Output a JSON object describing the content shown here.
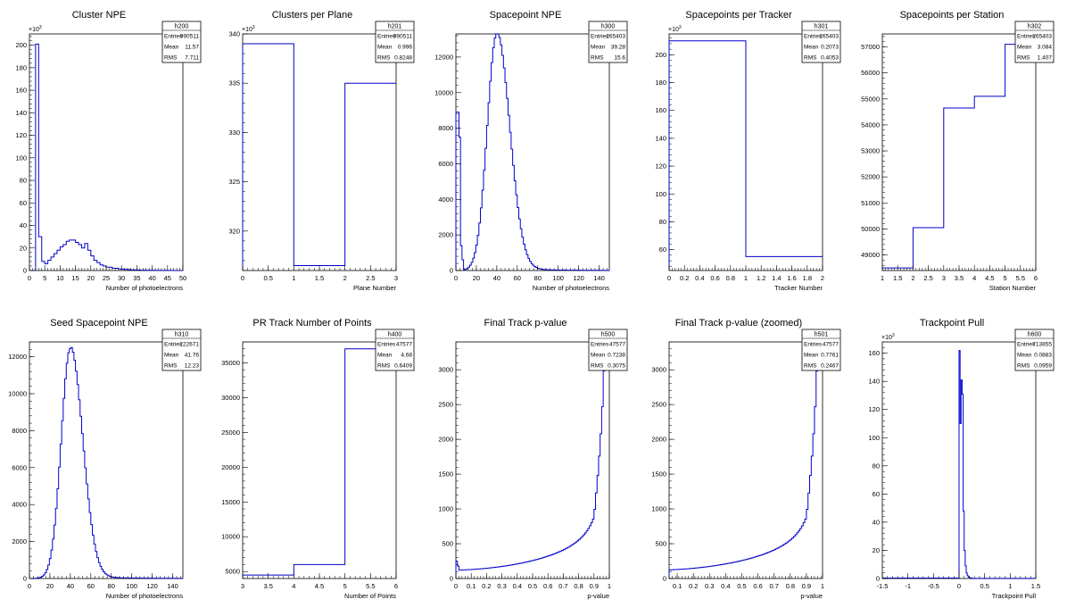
{
  "chart_data": [
    {
      "type": "histogram",
      "title": "Cluster NPE",
      "xlabel": "Number of photoelectrons",
      "xlim": [
        0,
        50
      ],
      "ylim": [
        0,
        210
      ],
      "y_multiplier_label": "×10",
      "y_multiplier_exp": "3",
      "xticks": [
        0,
        5,
        10,
        15,
        20,
        25,
        30,
        35,
        40,
        45,
        50
      ],
      "yticks": [
        0,
        20,
        40,
        60,
        80,
        100,
        120,
        140,
        160,
        180,
        200
      ],
      "stats": {
        "name": "h200",
        "rows": [
          [
            "Entries",
            "990511"
          ],
          [
            "Mean",
            "11.57"
          ],
          [
            "RMS",
            "7.711"
          ]
        ]
      },
      "bins": {
        "edges": [
          0,
          1,
          2,
          3,
          4,
          5,
          6,
          7,
          8,
          9,
          10,
          11,
          12,
          13,
          14,
          15,
          16,
          17,
          18,
          19,
          20,
          21,
          22,
          23,
          24,
          25,
          26,
          27,
          28,
          29,
          30,
          31,
          32,
          33,
          34,
          35,
          36,
          37,
          38,
          39,
          40,
          41,
          42,
          43,
          44,
          45,
          46,
          47,
          48,
          49,
          50
        ],
        "values": [
          0,
          0,
          201,
          30,
          8,
          6,
          9,
          12,
          15,
          18,
          21,
          23,
          26,
          27,
          27,
          25,
          23,
          20,
          24,
          18,
          13,
          9,
          7,
          5,
          4,
          3,
          3,
          2,
          2,
          1.5,
          1.2,
          1.0,
          0.8,
          0.6,
          0.5,
          0.4,
          0.3,
          0.3,
          0.2,
          0.2,
          0.2,
          0.1,
          0.1,
          0.1,
          0.1,
          0.1,
          0.05,
          0.05,
          0.05,
          0.05
        ]
      }
    },
    {
      "type": "histogram",
      "title": "Clusters per Plane",
      "xlabel": "Plane Number",
      "xlim": [
        0,
        3
      ],
      "ylim": [
        316,
        340
      ],
      "y_multiplier_label": "×10",
      "y_multiplier_exp": "3",
      "xticks": [
        0,
        0.5,
        1,
        1.5,
        2,
        2.5,
        3
      ],
      "yticks": [
        320,
        325,
        330,
        335,
        340
      ],
      "stats": {
        "name": "h201",
        "rows": [
          [
            "Entries",
            "990511"
          ],
          [
            "Mean",
            "0.996"
          ],
          [
            "RMS",
            "0.8248"
          ]
        ]
      },
      "bins": {
        "edges": [
          0,
          1,
          2,
          3
        ],
        "values": [
          339,
          316.5,
          335
        ]
      }
    },
    {
      "type": "histogram",
      "title": "Spacepoint NPE",
      "xlabel": "Number of photoelectrons",
      "xlim": [
        0,
        150
      ],
      "ylim": [
        0,
        13300
      ],
      "xticks": [
        0,
        20,
        40,
        60,
        80,
        100,
        120,
        140
      ],
      "yticks": [
        0,
        2000,
        4000,
        6000,
        8000,
        10000,
        12000
      ],
      "stats": {
        "name": "h300",
        "rows": [
          [
            "Entries",
            "265403"
          ],
          [
            "Mean",
            "39.28"
          ],
          [
            "RMS",
            "15.6"
          ]
        ]
      },
      "gauss": {
        "mu": 40,
        "sigma": 11,
        "amp": 13300,
        "tail": 20,
        "binw": 1.5,
        "spike": [
          [
            0,
            3,
            8900
          ],
          [
            3,
            4.5,
            7500
          ],
          [
            4.5,
            6,
            1400
          ],
          [
            6,
            7.5,
            600
          ]
        ]
      }
    },
    {
      "type": "histogram",
      "title": "Spacepoints per Tracker",
      "xlabel": "Tracker Number",
      "xlim": [
        0,
        2
      ],
      "ylim": [
        45,
        215
      ],
      "y_multiplier_label": "×10",
      "y_multiplier_exp": "3",
      "xticks": [
        0,
        0.2,
        0.4,
        0.6,
        0.8,
        1,
        1.2,
        1.4,
        1.6,
        1.8,
        2
      ],
      "yticks": [
        60,
        80,
        100,
        120,
        140,
        160,
        180,
        200
      ],
      "stats": {
        "name": "h301",
        "rows": [
          [
            "Entries",
            "265403"
          ],
          [
            "Mean",
            "0.2073"
          ],
          [
            "RMS",
            "0.4053"
          ]
        ]
      },
      "bins": {
        "edges": [
          0,
          1,
          2
        ],
        "values": [
          210,
          55
        ]
      }
    },
    {
      "type": "histogram",
      "title": "Spacepoints per Station",
      "xlabel": "Station Number",
      "xlim": [
        1,
        6
      ],
      "ylim": [
        48400,
        57500
      ],
      "xticks": [
        1,
        1.5,
        2,
        2.5,
        3,
        3.5,
        4,
        4.5,
        5,
        5.5,
        6
      ],
      "yticks": [
        49000,
        50000,
        51000,
        52000,
        53000,
        54000,
        55000,
        56000,
        57000
      ],
      "stats": {
        "name": "h302",
        "rows": [
          [
            "Entries",
            "265403"
          ],
          [
            "Mean",
            "3.084"
          ],
          [
            "RMS",
            "1.407"
          ]
        ]
      },
      "bins": {
        "edges": [
          1,
          2,
          3,
          4,
          5,
          6
        ],
        "values": [
          48500,
          50050,
          54650,
          55100,
          57100
        ]
      }
    },
    {
      "type": "histogram",
      "title": "Seed Spacepoint NPE",
      "xlabel": "Number of photoelectrons",
      "xlim": [
        0,
        150
      ],
      "ylim": [
        0,
        12800
      ],
      "xticks": [
        0,
        20,
        40,
        60,
        80,
        100,
        120,
        140
      ],
      "yticks": [
        0,
        2000,
        4000,
        6000,
        8000,
        10000,
        12000
      ],
      "stats": {
        "name": "h310",
        "rows": [
          [
            "Entries",
            "222671"
          ],
          [
            "Mean",
            "41.76"
          ],
          [
            "RMS",
            "12.23"
          ]
        ]
      },
      "gauss": {
        "mu": 40,
        "sigma": 10.5,
        "amp": 12450,
        "tail": 20,
        "binw": 1.5,
        "spike": []
      }
    },
    {
      "type": "histogram",
      "title": "PR Track Number of Points",
      "xlabel": "Number of Points",
      "xlim": [
        3,
        6
      ],
      "ylim": [
        4000,
        38000
      ],
      "xticks": [
        3,
        3.5,
        4,
        4.5,
        5,
        5.5,
        6
      ],
      "yticks": [
        5000,
        10000,
        15000,
        20000,
        25000,
        30000,
        35000
      ],
      "stats": {
        "name": "h400",
        "rows": [
          [
            "Entries",
            "47577"
          ],
          [
            "Mean",
            "4.68"
          ],
          [
            "RMS",
            "0.6409"
          ]
        ]
      },
      "bins": {
        "edges": [
          3,
          4,
          5,
          6
        ],
        "values": [
          4500,
          6000,
          37000
        ]
      }
    },
    {
      "type": "histogram",
      "title": "Final Track p-value",
      "xlabel": "p-value",
      "xlim": [
        0,
        1
      ],
      "ylim": [
        0,
        3400
      ],
      "xticks": [
        0,
        0.1,
        0.2,
        0.3,
        0.4,
        0.5,
        0.6,
        0.7,
        0.8,
        0.9,
        1
      ],
      "yticks": [
        0,
        500,
        1000,
        1500,
        2000,
        2500,
        3000
      ],
      "stats": {
        "name": "h500",
        "rows": [
          [
            "Entries",
            "47577"
          ],
          [
            "Mean",
            "0.7238"
          ],
          [
            "RMS",
            "0.3075"
          ]
        ]
      },
      "pvalue": {
        "n": 100,
        "spike": [
          [
            0,
            0.01,
            250
          ],
          [
            0.01,
            0.02,
            180
          ]
        ]
      }
    },
    {
      "type": "histogram",
      "title": "Final Track p-value (zoomed)",
      "xlabel": "p-value",
      "xlim": [
        0.05,
        1
      ],
      "ylim": [
        0,
        3400
      ],
      "xticks": [
        0.1,
        0.2,
        0.3,
        0.4,
        0.5,
        0.6,
        0.7,
        0.8,
        0.9,
        1
      ],
      "yticks": [
        0,
        500,
        1000,
        1500,
        2000,
        2500,
        3000
      ],
      "stats": {
        "name": "h501",
        "rows": [
          [
            "Entries",
            "47577"
          ],
          [
            "Mean",
            "0.7761"
          ],
          [
            "RMS",
            "0.2467"
          ]
        ]
      },
      "pvalue": {
        "n": 95,
        "spike": []
      }
    },
    {
      "type": "histogram",
      "title": "Trackpoint Pull",
      "xlabel": "Trackpoint Pull",
      "xlim": [
        -1.5,
        1.5
      ],
      "ylim": [
        0,
        168
      ],
      "y_multiplier_label": "×10",
      "y_multiplier_exp": "3",
      "xticks": [
        -1.5,
        -1,
        -0.5,
        0,
        0.5,
        1,
        1.5
      ],
      "yticks": [
        0,
        20,
        40,
        60,
        80,
        100,
        120,
        140,
        160
      ],
      "stats": {
        "name": "h600",
        "rows": [
          [
            "Entries",
            "713855"
          ],
          [
            "Mean",
            "0.0883"
          ],
          [
            "RMS",
            "0.0959"
          ]
        ]
      },
      "bins": {
        "edges": [
          -1.5,
          0,
          0.02,
          0.04,
          0.06,
          0.08,
          0.1,
          0.12,
          0.14,
          0.16,
          0.18,
          0.2,
          0.22,
          0.26,
          1.5
        ],
        "values": [
          0.3,
          162,
          110,
          141,
          131,
          48,
          20,
          9,
          4,
          2,
          1,
          0.6,
          0.3,
          0.1
        ]
      }
    }
  ]
}
